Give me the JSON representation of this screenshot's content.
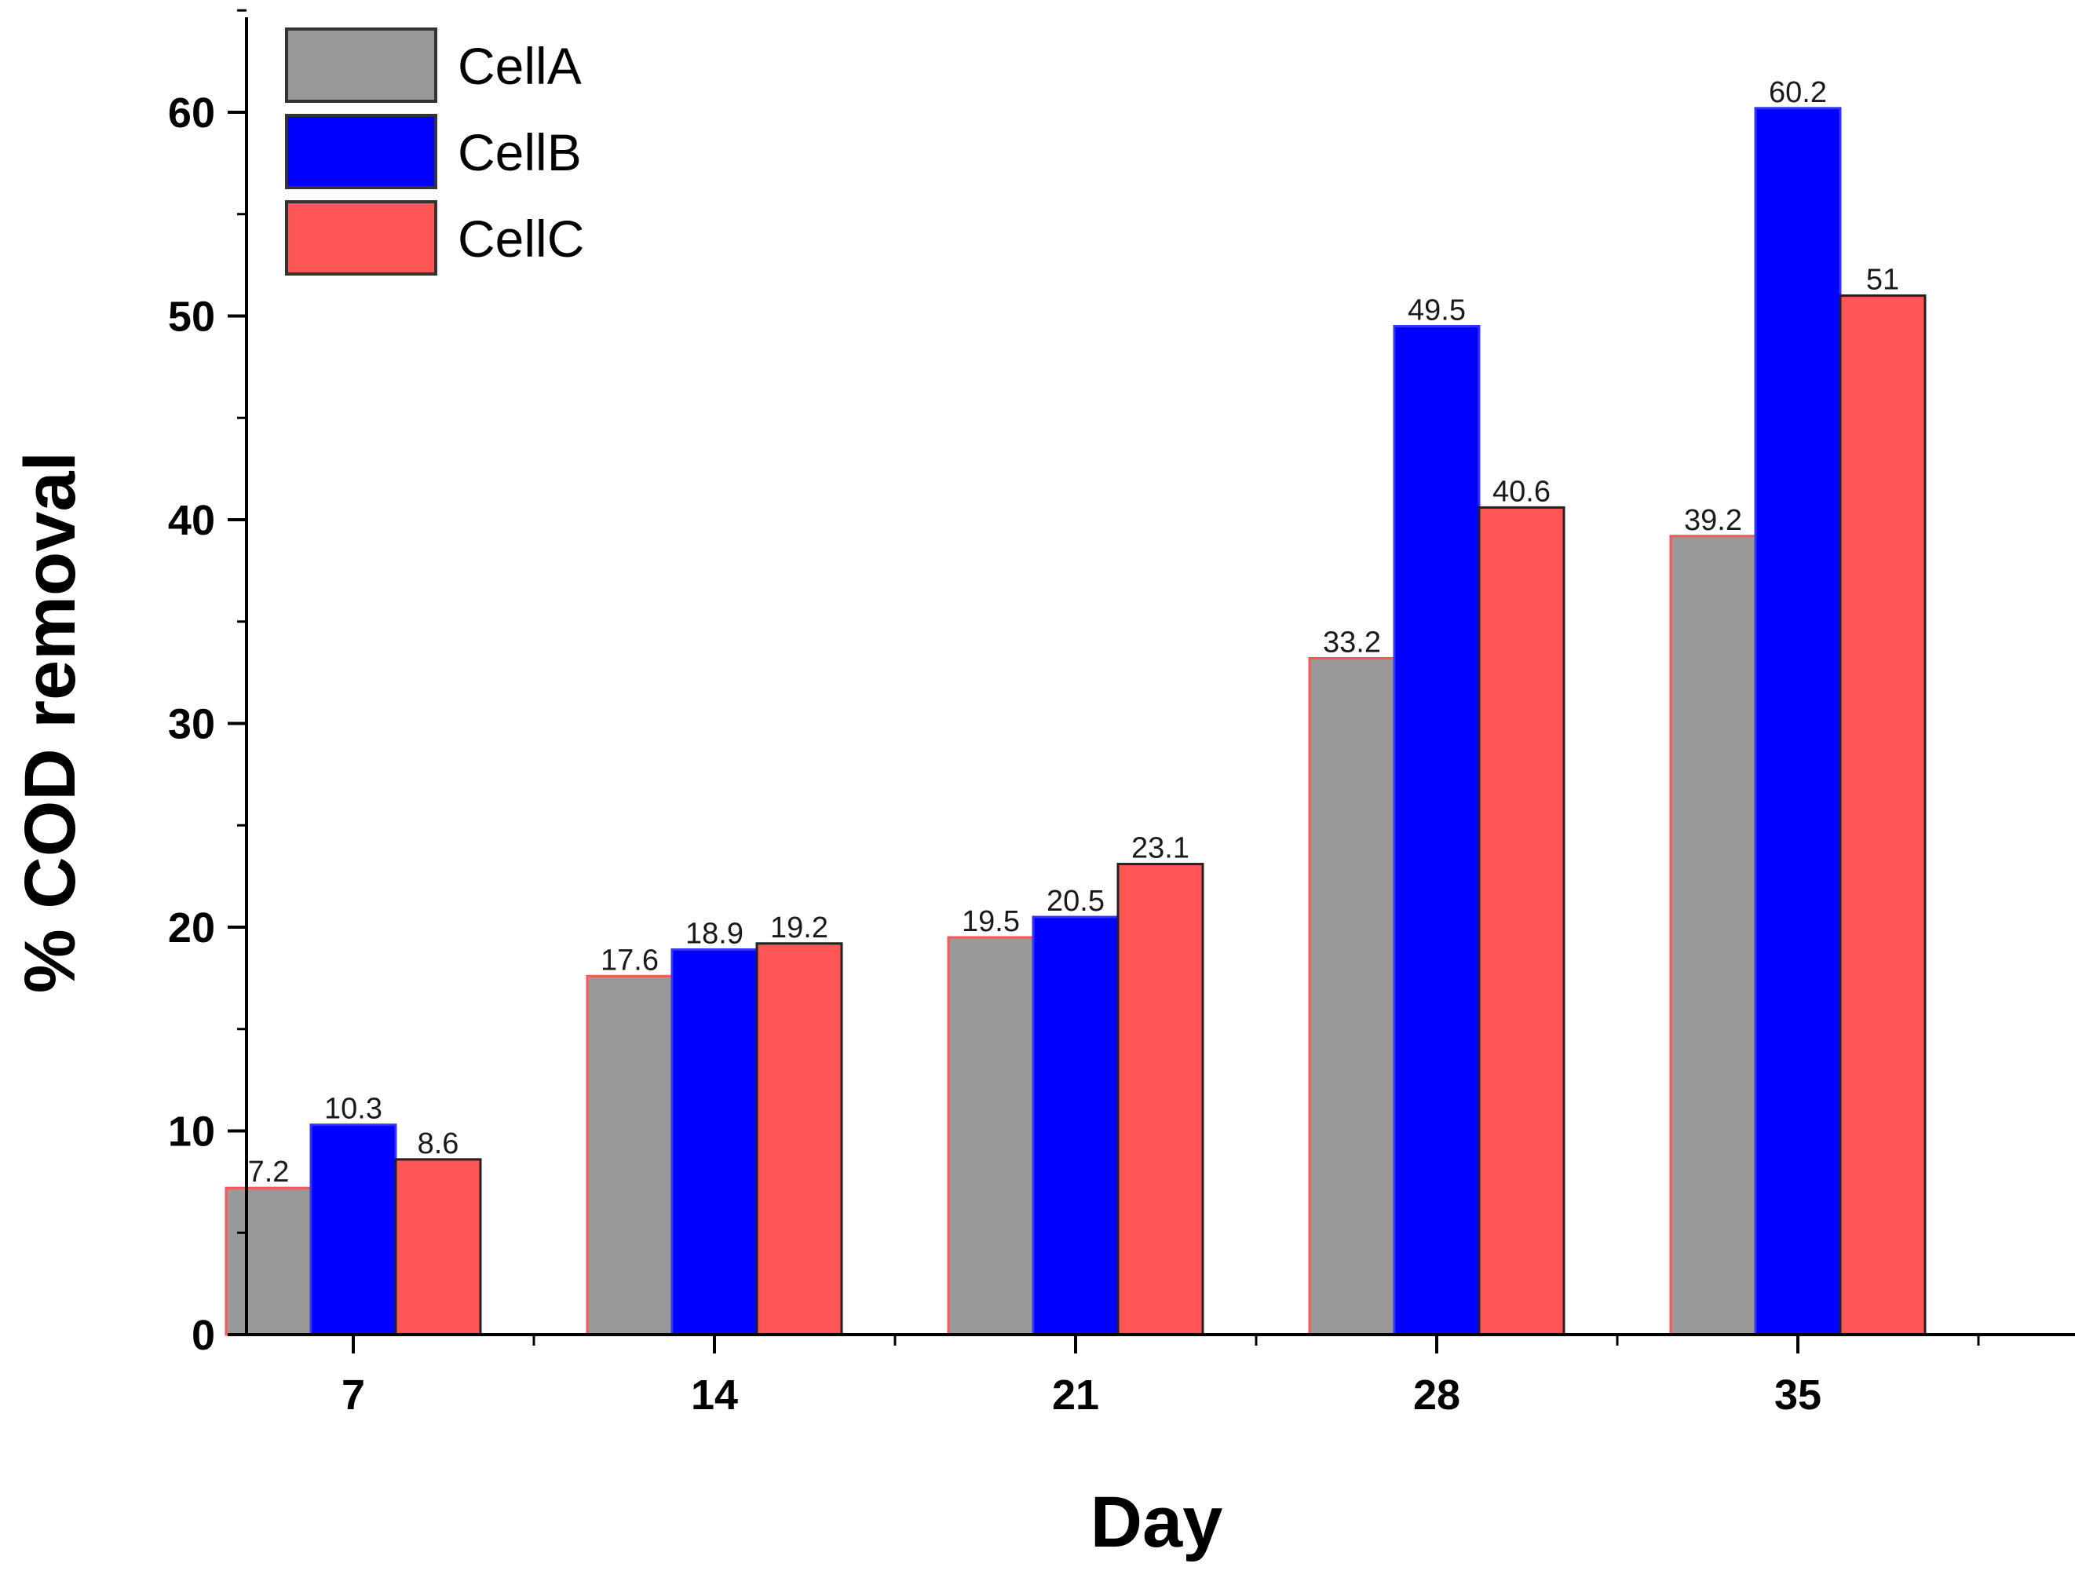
{
  "chart_data": {
    "type": "bar",
    "categories": [
      "7",
      "14",
      "21",
      "28",
      "35"
    ],
    "series": [
      {
        "name": "CellA",
        "color": "#999999",
        "values": [
          7.2,
          17.6,
          19.5,
          33.2,
          39.2
        ]
      },
      {
        "name": "CellB",
        "color": "#0000ff",
        "values": [
          10.3,
          18.9,
          20.5,
          49.5,
          60.2
        ]
      },
      {
        "name": "CellC",
        "color": "#ff5555",
        "values": [
          8.6,
          19.2,
          23.1,
          40.6,
          51
        ]
      }
    ],
    "data_labels": [
      [
        "7.2",
        "17.6",
        "19.5",
        "33.2",
        "39.2"
      ],
      [
        "10.3",
        "18.9",
        "20.5",
        "49.5",
        "60.2"
      ],
      [
        "8.6",
        "19.2",
        "23.1",
        "40.6",
        "51"
      ]
    ],
    "xlabel": "Day",
    "ylabel": "% COD removal",
    "ylim": [
      0,
      65
    ],
    "yticks": [
      0,
      10,
      20,
      30,
      40,
      50,
      60
    ],
    "legend_position": "top-left",
    "grid": false
  }
}
